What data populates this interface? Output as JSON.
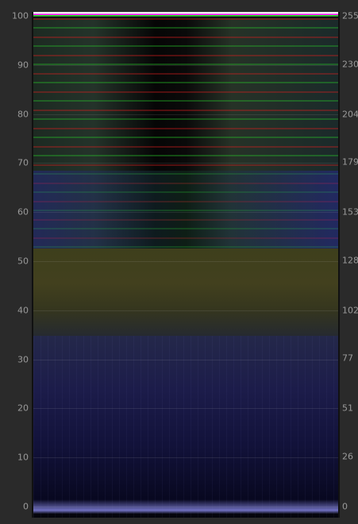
{
  "left_axis": {
    "ticks": [
      0,
      10,
      20,
      30,
      40,
      50,
      60,
      70,
      80,
      90,
      100
    ]
  },
  "right_axis": {
    "ticks": [
      0,
      26,
      51,
      77,
      102,
      128,
      153,
      179,
      204,
      230,
      255
    ]
  }
}
